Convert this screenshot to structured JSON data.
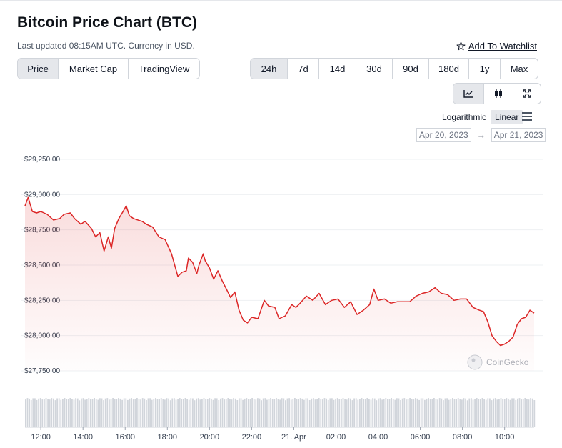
{
  "title": "Bitcoin Price Chart (BTC)",
  "subtitle": "Last updated 08:15AM UTC. Currency in USD.",
  "watchlist_label": "Add To Watchlist",
  "chart_types": [
    "Price",
    "Market Cap",
    "TradingView"
  ],
  "ranges": [
    "24h",
    "7d",
    "14d",
    "30d",
    "90d",
    "180d",
    "1y",
    "Max"
  ],
  "active_range": "24h",
  "scale_options": {
    "log": "Logarithmic",
    "linear": "Linear"
  },
  "date_from": "Apr 20, 2023",
  "date_to": "Apr 21, 2023",
  "date_arrow": "→",
  "watermark": "CoinGecko",
  "colors": {
    "line": "#dc2626",
    "volume": "#d1d5db",
    "active_bg": "#e5e7eb"
  },
  "icons": [
    "star-icon",
    "line-chart-icon",
    "candlestick-icon",
    "fullscreen-icon",
    "menu-icon"
  ],
  "chart_data": {
    "type": "area",
    "xlabel": "",
    "ylabel": "",
    "y_tick_labels": [
      "$29,250.00",
      "$29,000.00",
      "$28,750.00",
      "$28,500.00",
      "$28,250.00",
      "$28,000.00",
      "$27,750.00"
    ],
    "y_ticks": [
      29250,
      29000,
      28750,
      28500,
      28250,
      28000,
      27750
    ],
    "ylim": [
      27750,
      29250
    ],
    "x_tick_labels": [
      "12:00",
      "14:00",
      "16:00",
      "18:00",
      "20:00",
      "22:00",
      "21. Apr",
      "02:00",
      "04:00",
      "06:00",
      "08:00",
      "10:00"
    ],
    "x_ticks": [
      12,
      14,
      16,
      18,
      20,
      22,
      24,
      26,
      28,
      30,
      32,
      34
    ],
    "x_range_hours": [
      11.25,
      35.4
    ],
    "price_series": {
      "x": [
        11.25,
        11.4,
        11.6,
        11.8,
        12.0,
        12.3,
        12.6,
        12.9,
        13.1,
        13.4,
        13.6,
        13.9,
        14.1,
        14.4,
        14.6,
        14.8,
        15.0,
        15.2,
        15.35,
        15.5,
        15.7,
        15.9,
        16.05,
        16.2,
        16.4,
        16.6,
        16.8,
        17.0,
        17.3,
        17.6,
        17.9,
        18.2,
        18.5,
        18.7,
        18.9,
        19.0,
        19.2,
        19.4,
        19.5,
        19.7,
        19.8,
        20.0,
        20.2,
        20.4,
        20.6,
        20.8,
        21.0,
        21.2,
        21.4,
        21.6,
        21.8,
        22.0,
        22.3,
        22.6,
        22.8,
        23.1,
        23.3,
        23.6,
        23.9,
        24.1,
        24.3,
        24.6,
        24.9,
        25.2,
        25.5,
        25.8,
        26.1,
        26.4,
        26.7,
        27.0,
        27.3,
        27.6,
        27.8,
        28.0,
        28.3,
        28.6,
        28.9,
        29.2,
        29.5,
        29.8,
        30.1,
        30.4,
        30.7,
        31.0,
        31.3,
        31.6,
        31.9,
        32.2,
        32.5,
        32.8,
        33.0,
        33.2,
        33.4,
        33.6,
        33.8,
        34.0,
        34.2,
        34.4,
        34.6,
        34.8,
        35.0,
        35.2,
        35.3,
        35.4
      ],
      "y": [
        28920,
        28980,
        28880,
        28870,
        28880,
        28860,
        28820,
        28830,
        28860,
        28870,
        28830,
        28790,
        28810,
        28760,
        28700,
        28730,
        28600,
        28700,
        28620,
        28760,
        28830,
        28880,
        28920,
        28850,
        28830,
        28820,
        28810,
        28790,
        28770,
        28700,
        28680,
        28580,
        28420,
        28450,
        28460,
        28550,
        28520,
        28440,
        28500,
        28580,
        28530,
        28480,
        28400,
        28460,
        28390,
        28330,
        28270,
        28310,
        28180,
        28110,
        28090,
        28130,
        28120,
        28250,
        28210,
        28200,
        28120,
        28140,
        28220,
        28200,
        28230,
        28280,
        28250,
        28300,
        28220,
        28250,
        28260,
        28200,
        28240,
        28150,
        28180,
        28220,
        28330,
        28250,
        28260,
        28230,
        28240,
        28240,
        28240,
        28280,
        28300,
        28310,
        28340,
        28300,
        28290,
        28250,
        28260,
        28260,
        28200,
        28180,
        28170,
        28100,
        28000,
        27960,
        27930,
        27940,
        27960,
        27990,
        28080,
        28120,
        28130,
        28180,
        28170,
        28160
      ]
    },
    "volume_series": {
      "type": "bar",
      "relative_values": "uniform"
    },
    "grid": true,
    "legend": "none"
  }
}
